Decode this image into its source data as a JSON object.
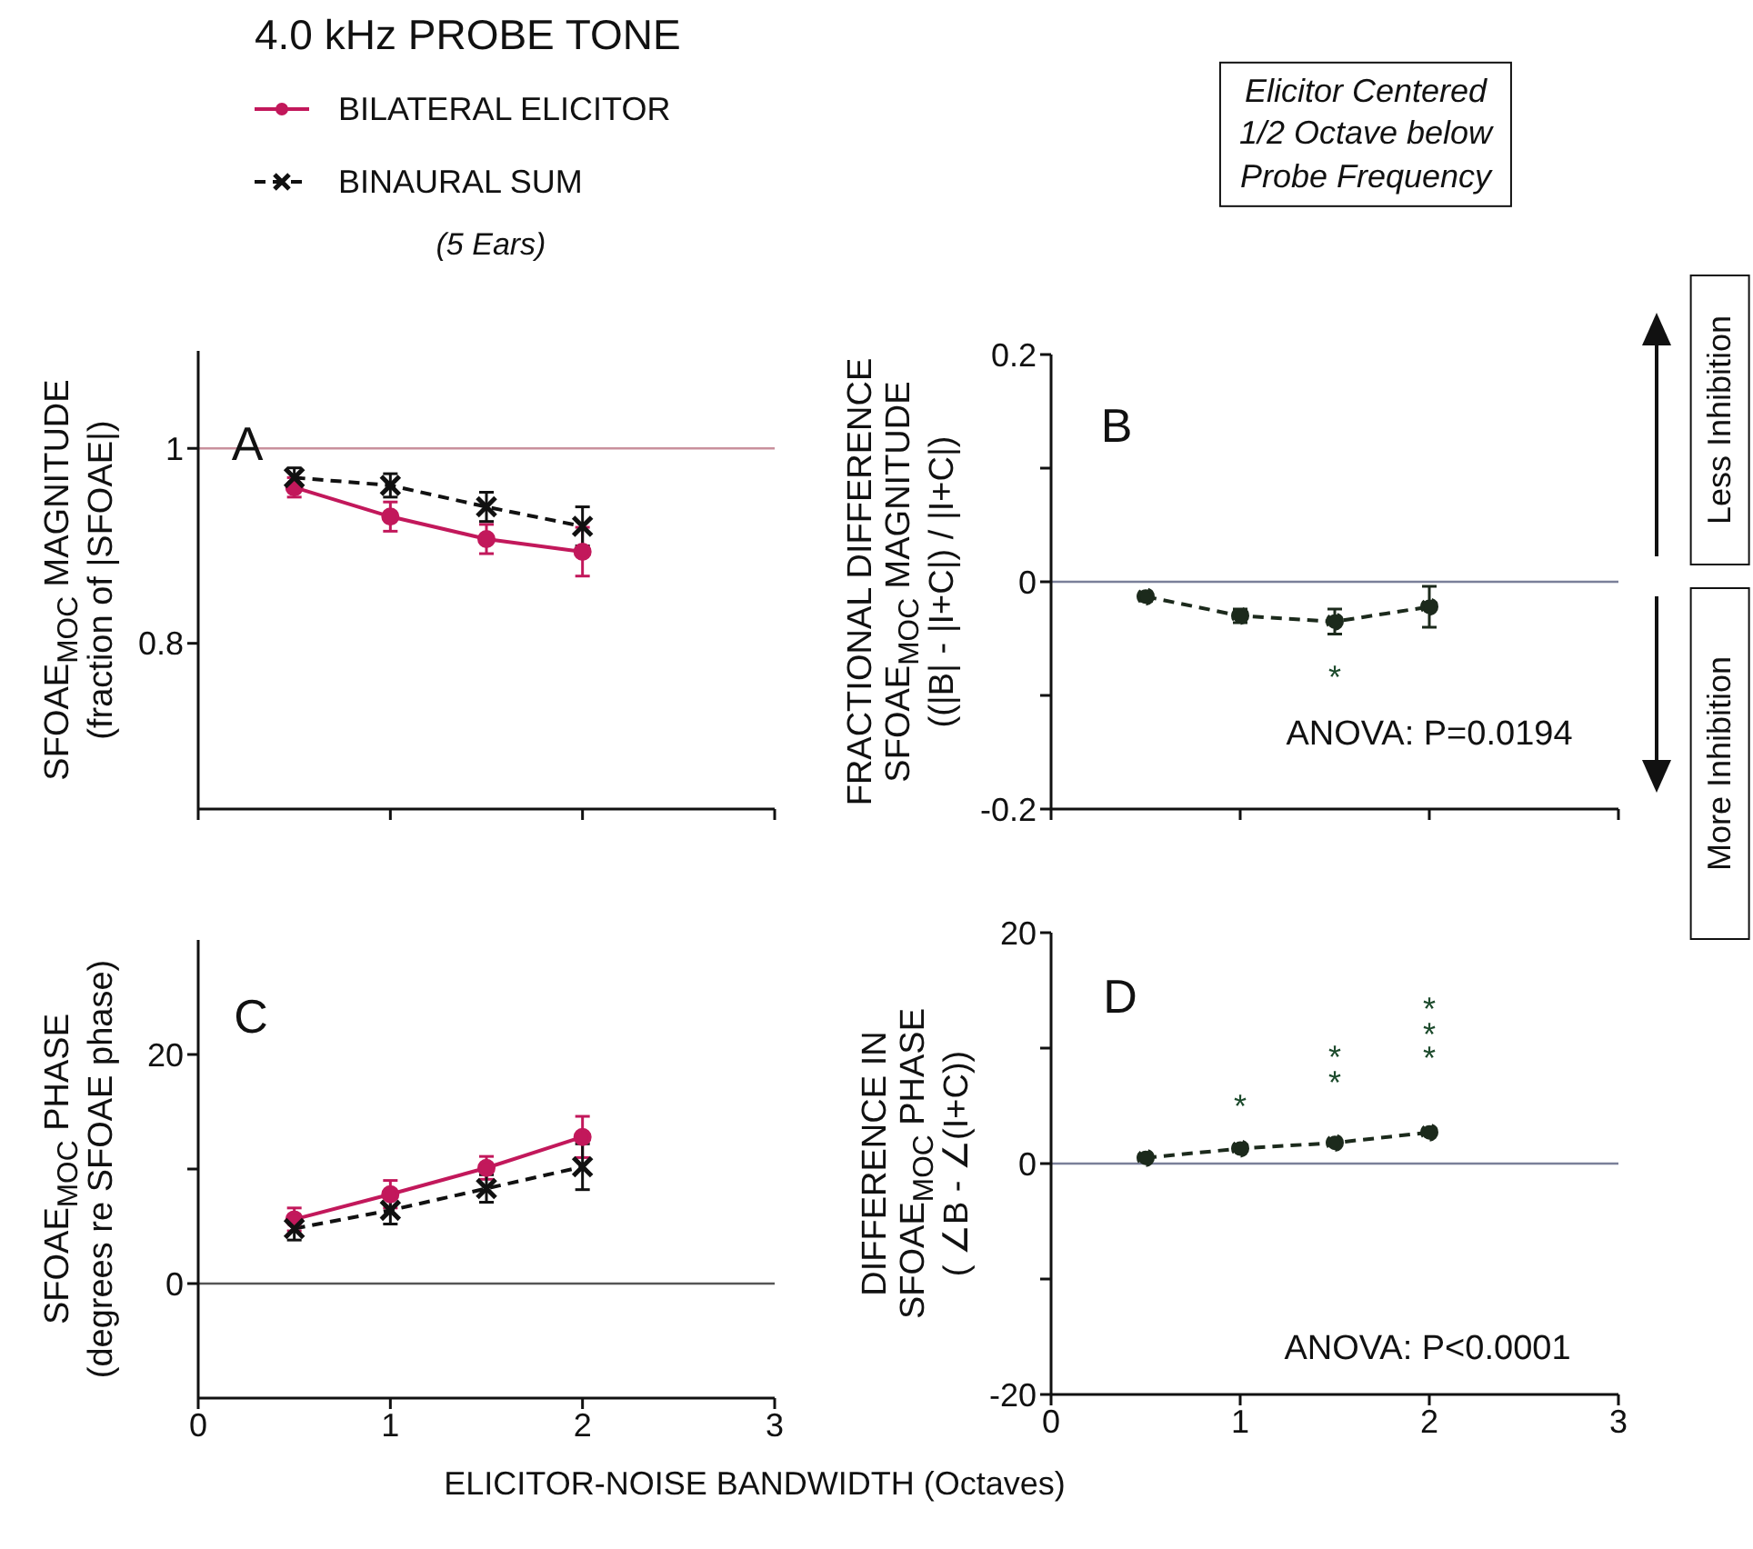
{
  "chart_data": [
    {
      "type": "line",
      "title": "4.0 kHz PROBE TONE",
      "ylabel": "SFOAE$_{MOC}$ MAGNITUDE\n(fraction of  |SFOAE|)",
      "legend": "top left",
      "x": [
        0.5,
        1,
        1.5,
        2
      ],
      "xlim": [
        0,
        3
      ],
      "xticks": [
        0,
        1,
        2,
        3
      ],
      "ylim": [
        0.63,
        1.1
      ],
      "yticks": [
        0.8,
        1
      ],
      "tick_labels": "y",
      "series": [
        {
          "name": "BILATERAL ELICITOR",
          "color": "#c2185b",
          "values": [
            0.96,
            0.93,
            0.907,
            0.894
          ],
          "errors": [
            0.01,
            0.015,
            0.015,
            0.025
          ],
          "marker": "circle",
          "line_style": "solid"
        },
        {
          "name": "BINAURAL SUM",
          "color": "#111111",
          "values": [
            0.97,
            0.962,
            0.94,
            0.92
          ],
          "errors": [
            0.01,
            0.012,
            0.015,
            0.02
          ],
          "marker": "cross",
          "line_style": "dashed"
        }
      ],
      "ref_lines": [
        {
          "axis": "y",
          "value": 1,
          "color": "#c9909c"
        }
      ],
      "annotations": [
        "A",
        "(5 Ears)"
      ]
    },
    {
      "type": "line",
      "ylabel": "FRACTIONAL DIFFERENCE\nSFOAE$_{MOC}$ MAGNITUDE\n((|B| - |I+C|) / |I+C|)",
      "x": [
        0.5,
        1,
        1.5,
        2
      ],
      "xlim": [
        0,
        3
      ],
      "xticks": [
        0,
        1,
        2,
        3
      ],
      "ylim": [
        -0.2,
        0.2
      ],
      "yticks": [
        -0.2,
        {
          "value": -0.1,
          "label": null
        },
        0,
        {
          "value": 0.1,
          "label": null
        },
        0.2
      ],
      "tick_labels": "y",
      "series": [
        {
          "color": "#1c2a1c",
          "values": [
            -0.013,
            -0.03,
            -0.035,
            -0.022
          ],
          "errors": [
            0.004,
            0.006,
            0.011,
            0.018
          ],
          "marker": "circle",
          "line_style": "dashed"
        }
      ],
      "ref_lines": [
        {
          "axis": "y",
          "value": 0,
          "color": "#7a7f99"
        }
      ],
      "annotations": [
        "B",
        "ANOVA: P=0.0194",
        "*",
        "Elicitor Centered\n1/2 Octave below\nProbe Frequency",
        "Less Inhibition",
        "More Inhibition"
      ]
    },
    {
      "type": "line",
      "ylabel": "SFOAE$_{MOC}$ PHASE\n(degrees re SFOAE phase)",
      "xlabel": "ELICITOR-NOISE BANDWIDTH (Octaves)",
      "x": [
        0.5,
        1,
        1.5,
        2
      ],
      "xlim": [
        0,
        3
      ],
      "xticks": [
        0,
        1,
        2,
        3
      ],
      "ylim": [
        -10,
        30
      ],
      "yticks": [
        0,
        {
          "value": 10,
          "label": null
        },
        20
      ],
      "series": [
        {
          "color": "#c2185b",
          "values": [
            5.6,
            7.8,
            10.1,
            12.8
          ],
          "errors": [
            1,
            1.2,
            1,
            1.8
          ],
          "marker": "circle",
          "line_style": "solid"
        },
        {
          "color": "#111111",
          "values": [
            4.8,
            6.4,
            8.3,
            10.2
          ],
          "errors": [
            1,
            1.2,
            1.2,
            2
          ],
          "marker": "cross",
          "line_style": "dashed"
        }
      ],
      "ref_lines": [
        {
          "axis": "y",
          "value": 0,
          "color": "#555555"
        }
      ],
      "annotations": [
        "C"
      ]
    },
    {
      "type": "line",
      "ylabel": "DIFFERENCE IN\nSFOAE$_{MOC}$ PHASE\n( ∠B - ∠(I+C))",
      "x": [
        0.5,
        1,
        1.5,
        2
      ],
      "xlim": [
        0,
        3
      ],
      "xticks": [
        0,
        1,
        2,
        3
      ],
      "ylim": [
        -20,
        20
      ],
      "yticks": [
        -20,
        {
          "value": -10,
          "label": null
        },
        0,
        {
          "value": 10,
          "label": null
        },
        20
      ],
      "series": [
        {
          "color": "#1c2a1c",
          "values": [
            0.5,
            1.3,
            1.8,
            2.7
          ],
          "marker": "circle",
          "line_style": "dashed"
        }
      ],
      "ref_lines": [
        {
          "axis": "y",
          "value": 0,
          "color": "#7a7f99"
        }
      ],
      "annotations": [
        "D",
        "ANOVA: P<0.0001",
        "*",
        "**",
        "***"
      ]
    }
  ]
}
